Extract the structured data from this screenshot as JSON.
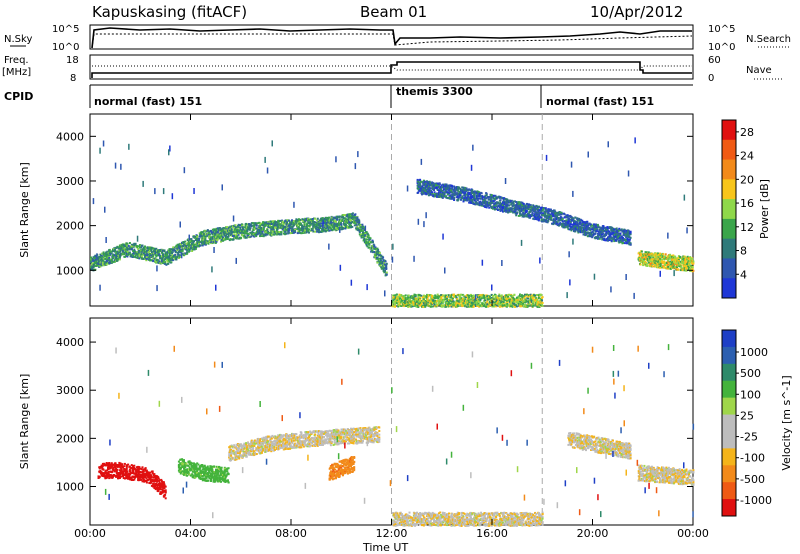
{
  "header": {
    "station": "Kapuskasing (fitACF)",
    "beam": "Beam 01",
    "date": "10/Apr/2012"
  },
  "top_panels": {
    "nsky_label": "N.Sky",
    "nsky_ticks": [
      "10^5",
      "10^0"
    ],
    "nsearch_label": "N.Search",
    "nsearch_ticks": [
      "10^5",
      "10^0"
    ],
    "freq_label": "Freq.",
    "freq_unit": "[MHz]",
    "freq_ticks": [
      "18",
      "8"
    ],
    "nave_label": "Nave",
    "nave_ticks": [
      "60",
      "0"
    ],
    "cpid_label": "CPID",
    "cpid_modes": [
      {
        "label": "normal (fast) 151",
        "start_hour": 0
      },
      {
        "label": "themis 3300",
        "start_hour": 12
      },
      {
        "label": "normal (fast) 151",
        "start_hour": 18
      }
    ]
  },
  "colors": {
    "power_scale": [
      "#1f37d6",
      "#2f57b0",
      "#2f7a7a",
      "#3aa54a",
      "#8fd84a",
      "#f7c51b",
      "#f28a1a",
      "#f05a14",
      "#e01010"
    ],
    "velocity_scale": [
      "#1e3fc6",
      "#2c5fb0",
      "#2e8a6a",
      "#44b33c",
      "#9fd64a",
      "#bdbdbd",
      "#bdbdbd",
      "#f4b41a",
      "#f28a1a",
      "#ef5a14",
      "#e01010"
    ]
  },
  "chart_data": [
    {
      "type": "heatmap",
      "title": "",
      "xlabel": "Time UT",
      "ylabel": "Slant Range [km]",
      "x_ticks": [
        "00:00",
        "04:00",
        "08:00",
        "12:00",
        "16:00",
        "20:00",
        "00:00"
      ],
      "y_ticks": [
        1000,
        2000,
        3000,
        4000
      ],
      "xlim": [
        0,
        24
      ],
      "ylim": [
        200,
        4500
      ],
      "colorbar_label": "Power [dB]",
      "colorbar_ticks": [
        4,
        8,
        12,
        16,
        20,
        24,
        28
      ],
      "colorbar_range": [
        0,
        30
      ],
      "echo_bands": [
        {
          "x": [
            0,
            1.5,
            3,
            4.5,
            6,
            8,
            9.5,
            10.5,
            11.8
          ],
          "y": [
            1150,
            1500,
            1300,
            1750,
            1900,
            2000,
            2050,
            2150,
            1000
          ],
          "power": 10
        },
        {
          "x": [
            13,
            15,
            17,
            18.5,
            20,
            21.5
          ],
          "y": [
            2900,
            2700,
            2400,
            2200,
            1900,
            1750
          ],
          "power": 6
        },
        {
          "x": [
            12,
            14,
            16,
            18
          ],
          "y": [
            320,
            320,
            320,
            320
          ],
          "power": 14
        },
        {
          "x": [
            21.8,
            22.5,
            23.2,
            24
          ],
          "y": [
            1300,
            1250,
            1200,
            1150
          ],
          "power": 16
        }
      ]
    },
    {
      "type": "heatmap",
      "title": "",
      "xlabel": "Time UT",
      "ylabel": "Slant Range [km]",
      "x_ticks": [
        "00:00",
        "04:00",
        "08:00",
        "12:00",
        "16:00",
        "20:00",
        "00:00"
      ],
      "y_ticks": [
        1000,
        2000,
        3000,
        4000
      ],
      "xlim": [
        0,
        24
      ],
      "ylim": [
        200,
        4500
      ],
      "colorbar_label": "Velocity [m s^-1]",
      "colorbar_ticks": [
        1000,
        500,
        100,
        25,
        -25,
        -100,
        -500,
        -1000
      ],
      "echo_bands": [
        {
          "x": [
            0.3,
            1.2,
            2.3,
            3.0
          ],
          "y": [
            1350,
            1350,
            1250,
            900
          ],
          "velocity": -800
        },
        {
          "x": [
            3.5,
            4.5,
            5.5
          ],
          "y": [
            1450,
            1300,
            1250
          ],
          "velocity": 150
        },
        {
          "x": [
            5.5,
            7,
            8.5,
            10,
            11.5
          ],
          "y": [
            1700,
            1900,
            2000,
            2050,
            2100
          ],
          "velocity": 0
        },
        {
          "x": [
            9.5,
            10.5
          ],
          "y": [
            1300,
            1500
          ],
          "velocity": -200
        },
        {
          "x": [
            12,
            14,
            16,
            18
          ],
          "y": [
            320,
            320,
            320,
            320
          ],
          "velocity": 0
        },
        {
          "x": [
            19,
            20,
            21.5
          ],
          "y": [
            2000,
            1900,
            1750
          ],
          "velocity": 0
        },
        {
          "x": [
            21.8,
            23,
            24
          ],
          "y": [
            1300,
            1250,
            1200
          ],
          "velocity": 0
        }
      ]
    }
  ]
}
